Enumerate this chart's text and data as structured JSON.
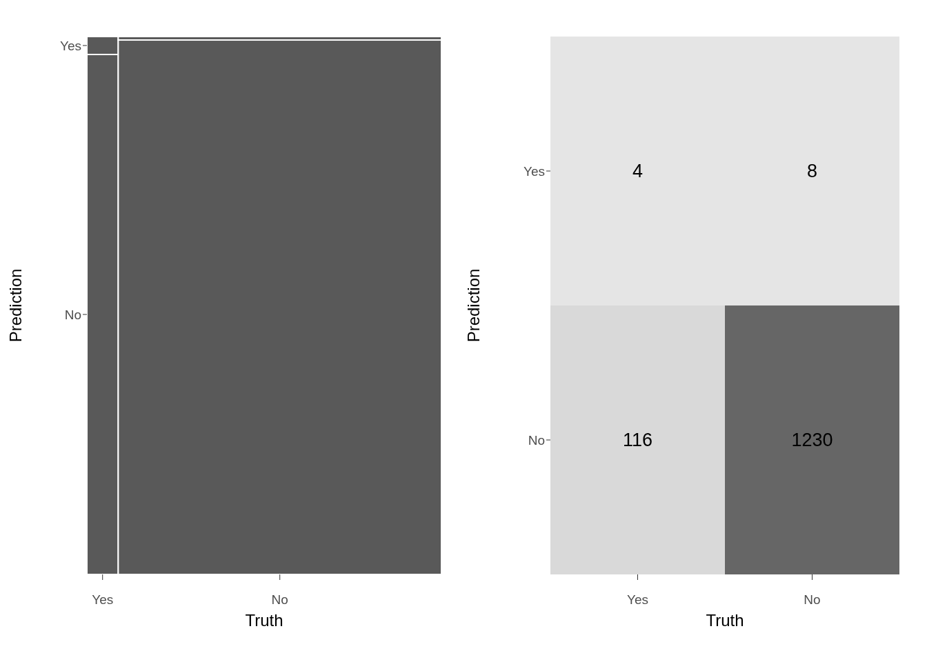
{
  "chart_data": [
    {
      "type": "other",
      "categories": [
        "Yes",
        "No"
      ],
      "y_categories": [
        "Yes",
        "No"
      ],
      "xlabel": "Truth",
      "ylabel": "Prediction"
    },
    {
      "type": "heatmap",
      "categories": [
        "Yes",
        "No"
      ],
      "y_categories": [
        "Yes",
        "No"
      ],
      "cells": [
        [
          4,
          8
        ],
        [
          116,
          1230
        ]
      ],
      "data_labels": true,
      "xlabel": "Truth",
      "ylabel": "Prediction"
    }
  ]
}
